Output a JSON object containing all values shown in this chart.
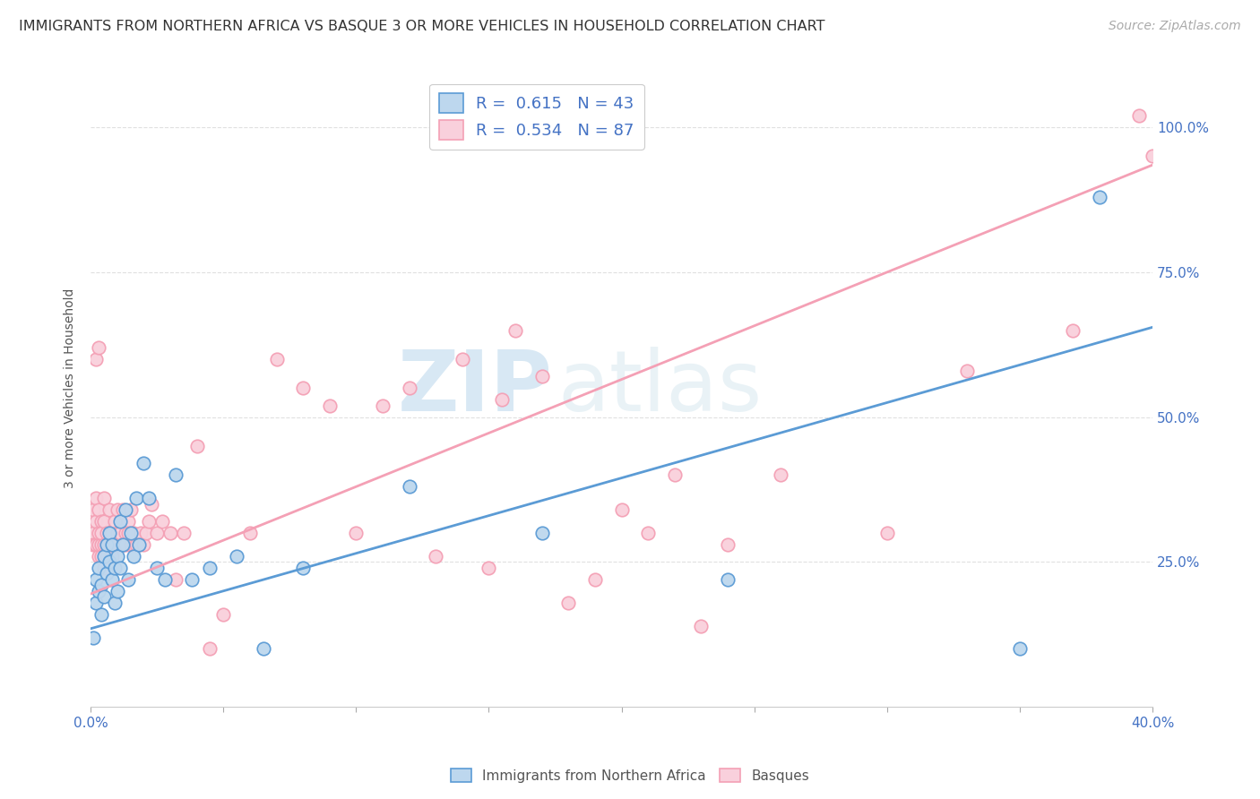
{
  "title": "IMMIGRANTS FROM NORTHERN AFRICA VS BASQUE 3 OR MORE VEHICLES IN HOUSEHOLD CORRELATION CHART",
  "source": "Source: ZipAtlas.com",
  "ylabel": "3 or more Vehicles in Household",
  "xlim": [
    0.0,
    0.4
  ],
  "ylim": [
    0.0,
    1.1
  ],
  "xtick_vals": [
    0.0,
    0.05,
    0.1,
    0.15,
    0.2,
    0.25,
    0.3,
    0.35,
    0.4
  ],
  "xtick_labels_shown": {
    "0": "0.0%",
    "8": "40.0%"
  },
  "ytick_vals": [
    0.25,
    0.5,
    0.75,
    1.0
  ],
  "ytick_right_labels": [
    "25.0%",
    "50.0%",
    "75.0%",
    "100.0%"
  ],
  "blue_color": "#5b9bd5",
  "blue_fill": "#bdd7ee",
  "pink_color": "#f4a0b5",
  "pink_fill": "#f9d0dc",
  "blue_R": "0.615",
  "blue_N": "43",
  "pink_R": "0.534",
  "pink_N": "87",
  "legend_label_blue": "Immigrants from Northern Africa",
  "legend_label_pink": "Basques",
  "watermark_zip": "ZIP",
  "watermark_atlas": "atlas",
  "blue_line_x0": 0.0,
  "blue_line_x1": 0.4,
  "blue_line_y0": 0.135,
  "blue_line_y1": 0.655,
  "pink_line_x0": 0.0,
  "pink_line_x1": 0.4,
  "pink_line_y0": 0.195,
  "pink_line_y1": 0.935,
  "background_color": "#ffffff",
  "grid_color": "#e0e0e0",
  "title_fontsize": 11.5,
  "source_fontsize": 10,
  "label_fontsize": 10,
  "tick_fontsize": 11,
  "blue_scatter_x": [
    0.001,
    0.002,
    0.002,
    0.003,
    0.003,
    0.004,
    0.004,
    0.005,
    0.005,
    0.006,
    0.006,
    0.007,
    0.007,
    0.008,
    0.008,
    0.009,
    0.009,
    0.01,
    0.01,
    0.011,
    0.011,
    0.012,
    0.013,
    0.014,
    0.015,
    0.016,
    0.017,
    0.018,
    0.02,
    0.022,
    0.025,
    0.028,
    0.032,
    0.038,
    0.045,
    0.055,
    0.065,
    0.08,
    0.12,
    0.17,
    0.24,
    0.35,
    0.38
  ],
  "blue_scatter_y": [
    0.12,
    0.18,
    0.22,
    0.2,
    0.24,
    0.16,
    0.21,
    0.19,
    0.26,
    0.23,
    0.28,
    0.25,
    0.3,
    0.22,
    0.28,
    0.18,
    0.24,
    0.2,
    0.26,
    0.32,
    0.24,
    0.28,
    0.34,
    0.22,
    0.3,
    0.26,
    0.36,
    0.28,
    0.42,
    0.36,
    0.24,
    0.22,
    0.4,
    0.22,
    0.24,
    0.26,
    0.1,
    0.24,
    0.38,
    0.3,
    0.22,
    0.1,
    0.88
  ],
  "pink_scatter_x": [
    0.001,
    0.001,
    0.001,
    0.002,
    0.002,
    0.002,
    0.002,
    0.003,
    0.003,
    0.003,
    0.003,
    0.003,
    0.004,
    0.004,
    0.004,
    0.004,
    0.005,
    0.005,
    0.005,
    0.005,
    0.006,
    0.006,
    0.006,
    0.007,
    0.007,
    0.007,
    0.008,
    0.008,
    0.008,
    0.009,
    0.009,
    0.01,
    0.01,
    0.01,
    0.011,
    0.011,
    0.012,
    0.012,
    0.013,
    0.013,
    0.014,
    0.014,
    0.015,
    0.015,
    0.016,
    0.016,
    0.017,
    0.018,
    0.019,
    0.02,
    0.021,
    0.022,
    0.023,
    0.025,
    0.027,
    0.03,
    0.032,
    0.035,
    0.04,
    0.045,
    0.05,
    0.06,
    0.07,
    0.08,
    0.09,
    0.1,
    0.11,
    0.12,
    0.13,
    0.14,
    0.15,
    0.155,
    0.16,
    0.17,
    0.18,
    0.19,
    0.2,
    0.21,
    0.22,
    0.23,
    0.24,
    0.26,
    0.3,
    0.33,
    0.37,
    0.395,
    0.4
  ],
  "pink_scatter_y": [
    0.3,
    0.34,
    0.28,
    0.28,
    0.32,
    0.36,
    0.6,
    0.26,
    0.28,
    0.3,
    0.34,
    0.62,
    0.26,
    0.28,
    0.32,
    0.3,
    0.24,
    0.28,
    0.32,
    0.36,
    0.28,
    0.3,
    0.26,
    0.28,
    0.34,
    0.3,
    0.26,
    0.3,
    0.28,
    0.28,
    0.32,
    0.28,
    0.3,
    0.34,
    0.28,
    0.3,
    0.28,
    0.34,
    0.3,
    0.28,
    0.32,
    0.3,
    0.28,
    0.34,
    0.28,
    0.3,
    0.28,
    0.28,
    0.3,
    0.28,
    0.3,
    0.32,
    0.35,
    0.3,
    0.32,
    0.3,
    0.22,
    0.3,
    0.45,
    0.1,
    0.16,
    0.3,
    0.6,
    0.55,
    0.52,
    0.3,
    0.52,
    0.55,
    0.26,
    0.6,
    0.24,
    0.53,
    0.65,
    0.57,
    0.18,
    0.22,
    0.34,
    0.3,
    0.4,
    0.14,
    0.28,
    0.4,
    0.3,
    0.58,
    0.65,
    1.02,
    0.95
  ]
}
